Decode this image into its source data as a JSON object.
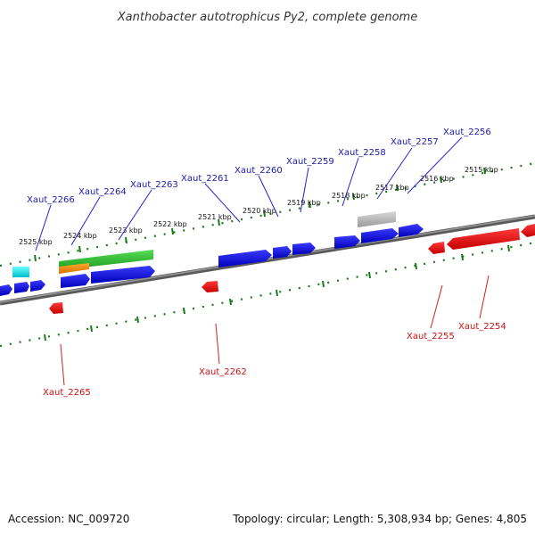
{
  "title": "Xanthobacter autotrophicus Py2, complete genome",
  "footer": {
    "accession": "Accession: NC_009720",
    "summary": "Topology: circular; Length: 5,308,934 bp; Genes: 4,805"
  },
  "kbp_labels": [
    "2525 kbp",
    "2524 kbp",
    "2523 kbp",
    "2522 kbp",
    "2521 kbp",
    "2520 kbp",
    "2519 kbp",
    "2518 kbp",
    "2517 kbp",
    "2516 kbp",
    "2515 kbp"
  ],
  "top_genes": [
    "Xaut_2266",
    "Xaut_2264",
    "Xaut_2263",
    "Xaut_2261",
    "Xaut_2260",
    "Xaut_2259",
    "Xaut_2258",
    "Xaut_2257",
    "Xaut_2256"
  ],
  "bottom_genes": [
    "Xaut_2265",
    "Xaut_2262",
    "Xaut_2255",
    "Xaut_2254"
  ],
  "colors": {
    "forward_gene": "#0000dd",
    "reverse_gene": "#ee0000",
    "rna_cyan": "#00e0e8",
    "rna_green": "#33bb33",
    "rna_orange": "#ee8800",
    "pseudo_gray": "#b0b0b0",
    "backbone": "#777777",
    "ruler_tick": "#1a7a1a",
    "top_label": "#1a1aa8",
    "bottom_label": "#cc1111"
  }
}
